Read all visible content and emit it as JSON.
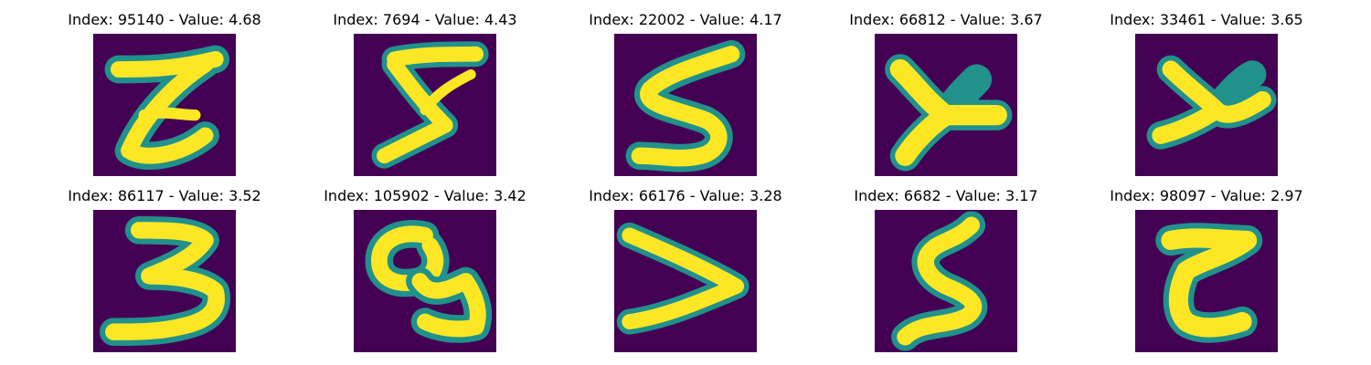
{
  "colors": {
    "background": "#440154",
    "halo": "#21918c",
    "stroke": "#fde725"
  },
  "panels": [
    {
      "title": "Index: 95140 - Value: 4.68",
      "icon": "handwritten-z-like-digit-image"
    },
    {
      "title": "Index: 7694 - Value: 4.43",
      "icon": "handwritten-z-like-digit-image"
    },
    {
      "title": "Index: 22002 - Value: 4.17",
      "icon": "handwritten-s-like-digit-image"
    },
    {
      "title": "Index: 66812 - Value: 3.67",
      "icon": "handwritten-y-like-digit-image"
    },
    {
      "title": "Index: 33461 - Value: 3.65",
      "icon": "handwritten-y-like-digit-image"
    },
    {
      "title": "Index: 86117 - Value: 3.52",
      "icon": "handwritten-3-like-digit-image"
    },
    {
      "title": "Index: 105902 - Value: 3.42",
      "icon": "handwritten-g-like-digit-image"
    },
    {
      "title": "Index: 66176 - Value: 3.28",
      "icon": "handwritten-greater-than-like-digit-image"
    },
    {
      "title": "Index: 6682 - Value: 3.17",
      "icon": "handwritten-s-like-digit-image"
    },
    {
      "title": "Index: 98097 - Value: 2.97",
      "icon": "handwritten-t-like-digit-image"
    }
  ]
}
